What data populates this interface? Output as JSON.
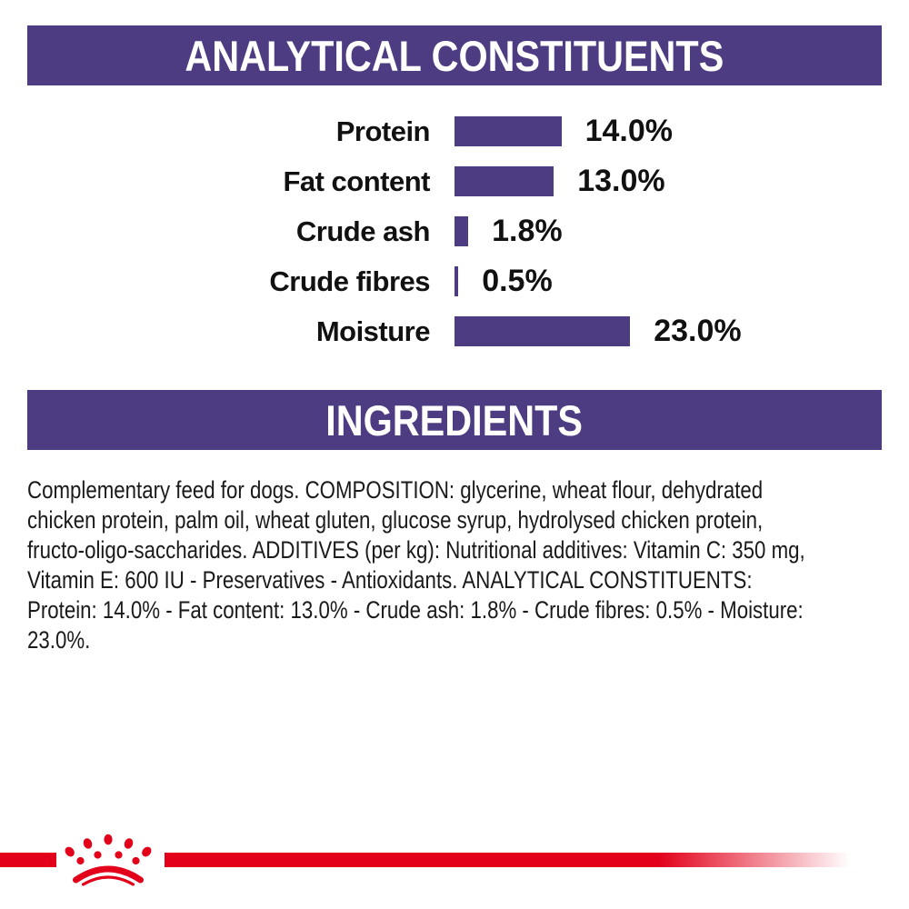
{
  "analytical": {
    "title": "ANALYTICAL CONSTITUENTS"
  },
  "chart_data": {
    "type": "bar",
    "orientation": "horizontal",
    "title": "ANALYTICAL CONSTITUENTS",
    "categories": [
      "Protein",
      "Fat content",
      "Crude ash",
      "Crude fibres",
      "Moisture"
    ],
    "values": [
      14.0,
      13.0,
      1.8,
      0.5,
      23.0
    ],
    "value_labels": [
      "14.0%",
      "13.0%",
      "1.8%",
      "0.5%",
      "23.0%"
    ],
    "unit": "%",
    "bar_color": "#4e3c82",
    "xlabel": "",
    "ylabel": "",
    "axis_shown": false,
    "grid": false,
    "legend": "none",
    "value_label_position": "right-of-bar"
  },
  "ingredients": {
    "title": "INGREDIENTS",
    "lines": [
      "Complementary feed for dogs. COMPOSITION: glycerine, wheat flour, dehydrated",
      "chicken protein, palm oil, wheat gluten, glucose syrup, hydrolysed chicken protein,",
      "fructo-oligo-saccharides. ADDITIVES (per kg): Nutritional additives: Vitamin C: 350 mg,",
      "Vitamin E: 600 IU - Preservatives - Antioxidants. ANALYTICAL CONSTITUENTS:",
      "Protein: 14.0% - Fat content: 13.0% - Crude ash: 1.8% - Crude fibres: 0.5% - Moisture:",
      "23.0%."
    ]
  },
  "footer": {
    "logo_icon": "royal-canin-crown-icon",
    "stripe_color": "#e2001a"
  },
  "colors": {
    "purple": "#4e3c82",
    "red": "#e2001a",
    "text": "#1a1a1a",
    "background": "#ffffff"
  }
}
